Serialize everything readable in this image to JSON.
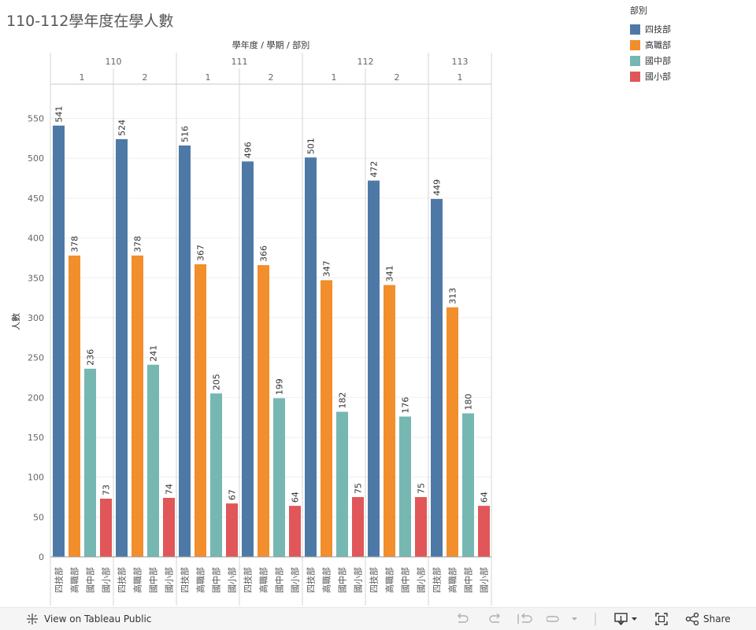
{
  "title": "110-112學年度在學人數",
  "legend": {
    "title": "部別",
    "items": [
      {
        "label": "四技部",
        "color": "#4e79a7"
      },
      {
        "label": "高職部",
        "color": "#f28e2b"
      },
      {
        "label": "國中部",
        "color": "#76b7b2"
      },
      {
        "label": "國小部",
        "color": "#e15759"
      }
    ]
  },
  "toolbar": {
    "view_label": "View on Tableau Public",
    "share_label": "Share"
  },
  "chart_data": {
    "type": "bar",
    "header_label": "學年度 / 學期 / 部別",
    "ylabel": "人數",
    "ylim": [
      0,
      590
    ],
    "yticks": [
      0,
      50,
      100,
      150,
      200,
      250,
      300,
      350,
      400,
      450,
      500,
      550
    ],
    "categories": [
      "四技部",
      "高職部",
      "國中部",
      "國小部"
    ],
    "years": [
      {
        "label": "110",
        "terms": [
          "1",
          "2"
        ]
      },
      {
        "label": "111",
        "terms": [
          "1",
          "2"
        ]
      },
      {
        "label": "112",
        "terms": [
          "1",
          "2"
        ]
      },
      {
        "label": "113",
        "terms": [
          "1"
        ]
      }
    ],
    "groups": [
      {
        "year": "110",
        "term": "1",
        "values": [
          541,
          378,
          236,
          73
        ]
      },
      {
        "year": "110",
        "term": "2",
        "values": [
          524,
          378,
          241,
          74
        ]
      },
      {
        "year": "111",
        "term": "1",
        "values": [
          516,
          367,
          205,
          67
        ]
      },
      {
        "year": "111",
        "term": "2",
        "values": [
          496,
          366,
          199,
          64
        ]
      },
      {
        "year": "112",
        "term": "1",
        "values": [
          501,
          347,
          182,
          75
        ]
      },
      {
        "year": "112",
        "term": "2",
        "values": [
          472,
          341,
          176,
          75
        ]
      },
      {
        "year": "113",
        "term": "1",
        "values": [
          449,
          313,
          180,
          64
        ]
      }
    ],
    "grid": true,
    "legend_position": "top-right"
  }
}
